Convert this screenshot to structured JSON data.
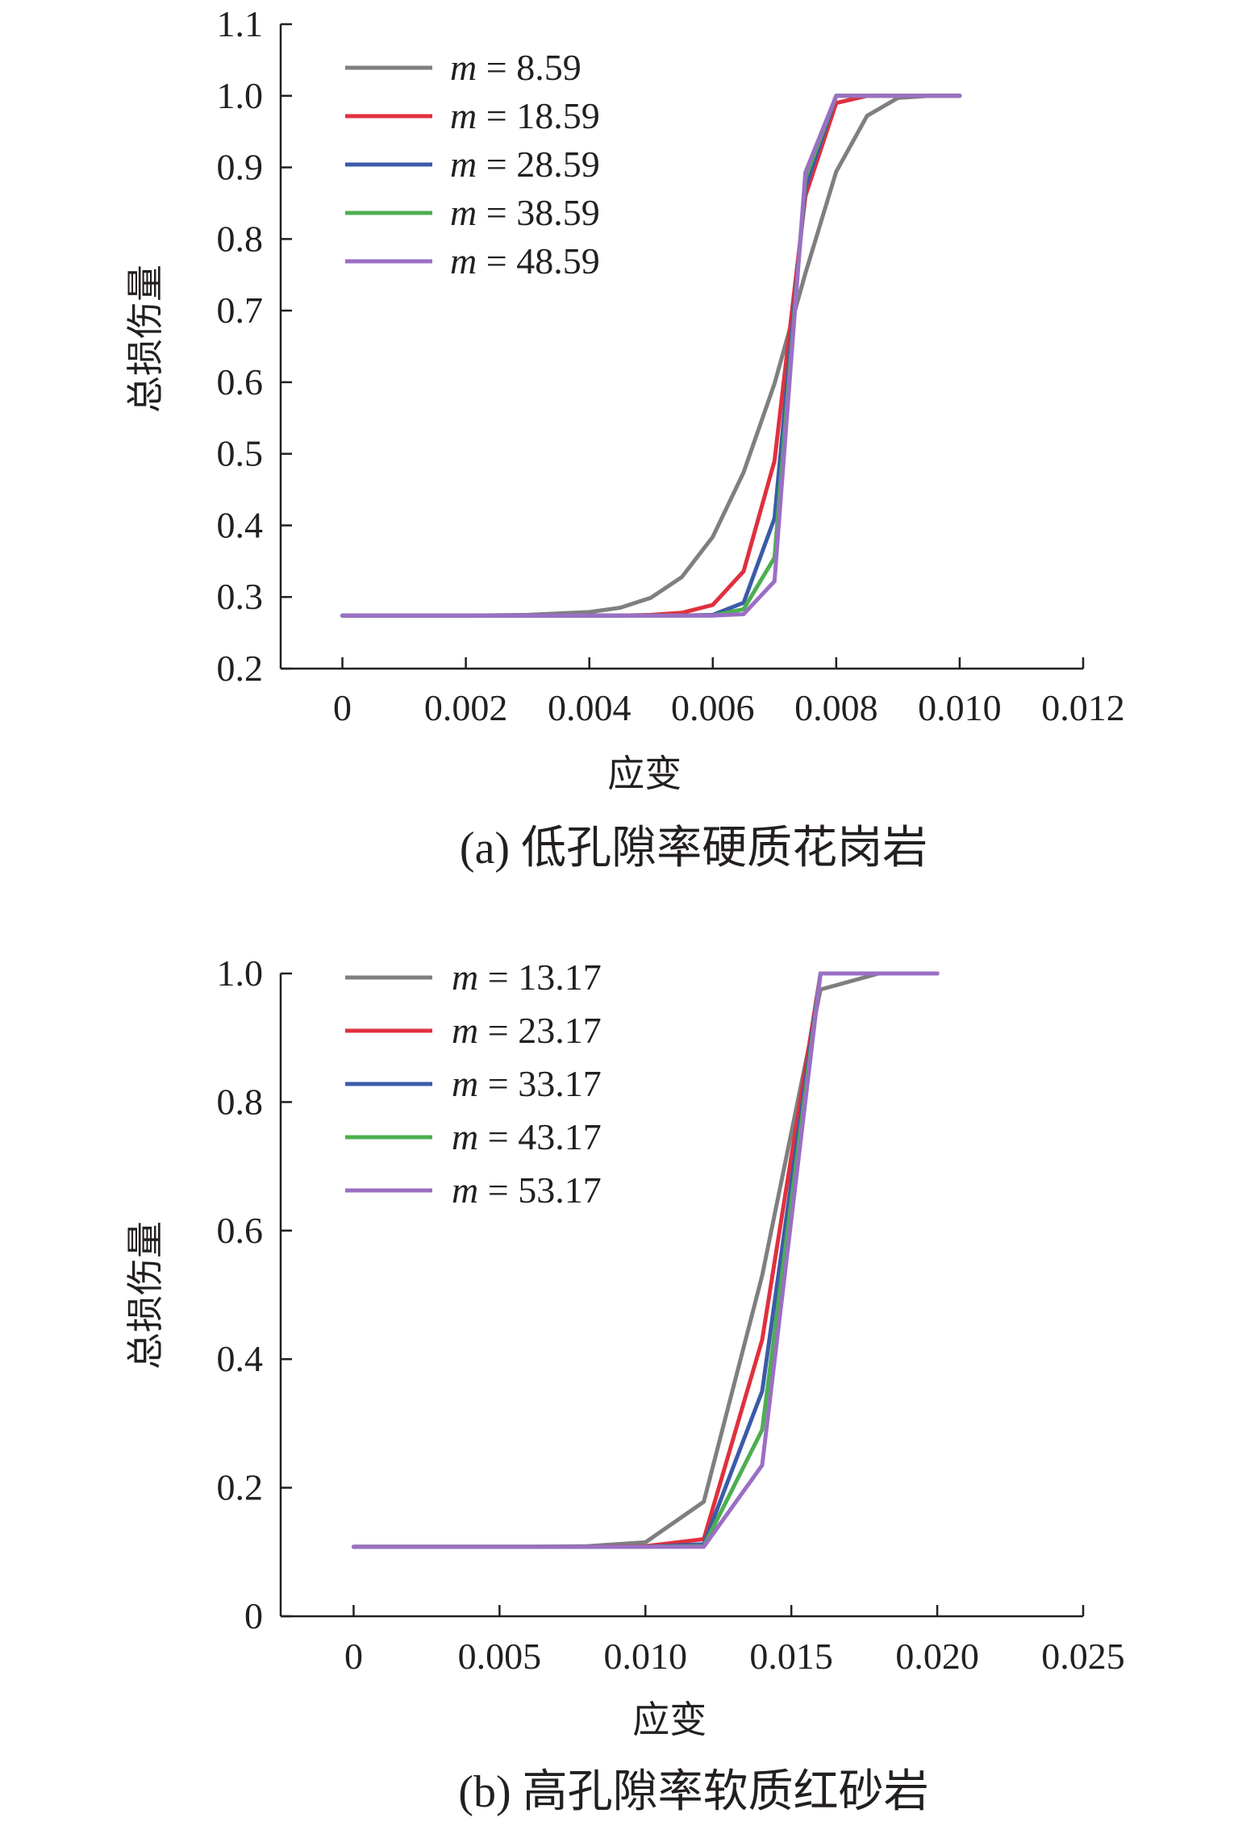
{
  "chart_data": [
    {
      "type": "line",
      "caption": "(a) 低孔隙率硬质花岗岩",
      "xlabel": "应变",
      "ylabel": "总损伤量",
      "xlim": [
        -0.001,
        0.012
      ],
      "ylim": [
        0.2,
        1.1
      ],
      "xticks": [
        0,
        0.002,
        0.004,
        0.006,
        0.008,
        0.01,
        0.012
      ],
      "xtick_labels": [
        "0",
        "0.002",
        "0.004",
        "0.006",
        "0.008",
        "0.010",
        "0.012"
      ],
      "yticks": [
        0.2,
        0.3,
        0.4,
        0.5,
        0.6,
        0.7,
        0.8,
        0.9,
        1.0,
        1.1
      ],
      "ytick_labels": [
        "0.2",
        "0.3",
        "0.4",
        "0.5",
        "0.6",
        "0.7",
        "0.8",
        "0.9",
        "1.0",
        "1.1"
      ],
      "grid": false,
      "legend_position": "top-left",
      "series": [
        {
          "name": "8.59",
          "color": "#7f7f7f",
          "x": [
            0,
            0.001,
            0.002,
            0.003,
            0.0035,
            0.004,
            0.0045,
            0.005,
            0.0055,
            0.006,
            0.0065,
            0.007,
            0.0075,
            0.008,
            0.0085,
            0.009,
            0.0095,
            0.01
          ],
          "y": [
            0.274,
            0.274,
            0.274,
            0.275,
            0.277,
            0.279,
            0.285,
            0.299,
            0.328,
            0.384,
            0.474,
            0.598,
            0.752,
            0.894,
            0.972,
            0.997,
            1.0,
            1.0
          ]
        },
        {
          "name": "18.59",
          "color": "#e0303e",
          "x": [
            0,
            0.001,
            0.002,
            0.003,
            0.004,
            0.0045,
            0.005,
            0.0055,
            0.006,
            0.0065,
            0.007,
            0.0075,
            0.008,
            0.0085,
            0.009,
            0.0095,
            0.01
          ],
          "y": [
            0.274,
            0.274,
            0.274,
            0.274,
            0.274,
            0.274,
            0.275,
            0.278,
            0.289,
            0.336,
            0.49,
            0.86,
            0.99,
            1.0,
            1.0,
            1.0,
            1.0
          ]
        },
        {
          "name": "28.59",
          "color": "#3b5ba9",
          "x": [
            0,
            0.001,
            0.002,
            0.003,
            0.004,
            0.005,
            0.0055,
            0.006,
            0.0065,
            0.007,
            0.0075,
            0.008,
            0.0085,
            0.009,
            0.0095,
            0.01
          ],
          "y": [
            0.274,
            0.274,
            0.274,
            0.274,
            0.274,
            0.274,
            0.274,
            0.275,
            0.292,
            0.41,
            0.872,
            1.0,
            1.0,
            1.0,
            1.0,
            1.0
          ]
        },
        {
          "name": "38.59",
          "color": "#4caf50",
          "x": [
            0,
            0.001,
            0.002,
            0.003,
            0.004,
            0.005,
            0.006,
            0.0065,
            0.007,
            0.0075,
            0.008,
            0.0085,
            0.009,
            0.0095,
            0.01
          ],
          "y": [
            0.274,
            0.274,
            0.274,
            0.274,
            0.274,
            0.274,
            0.274,
            0.283,
            0.355,
            0.885,
            1.0,
            1.0,
            1.0,
            1.0,
            1.0
          ]
        },
        {
          "name": "48.59",
          "color": "#9b6fc4",
          "x": [
            0,
            0.001,
            0.002,
            0.003,
            0.004,
            0.005,
            0.006,
            0.0065,
            0.007,
            0.0075,
            0.008,
            0.0085,
            0.009,
            0.0095,
            0.01
          ],
          "y": [
            0.274,
            0.274,
            0.274,
            0.274,
            0.274,
            0.274,
            0.274,
            0.276,
            0.322,
            0.893,
            1.0,
            1.0,
            1.0,
            1.0,
            1.0
          ]
        }
      ]
    },
    {
      "type": "line",
      "caption": "(b) 高孔隙率软质红砂岩",
      "xlabel": "应变",
      "ylabel": "总损伤量",
      "xlim": [
        -0.0025,
        0.025
      ],
      "ylim": [
        0,
        1.0
      ],
      "xticks": [
        0,
        0.005,
        0.01,
        0.015,
        0.02,
        0.025
      ],
      "xtick_labels": [
        "0",
        "0.005",
        "0.010",
        "0.015",
        "0.020",
        "0.025"
      ],
      "yticks": [
        0,
        0.2,
        0.4,
        0.6,
        0.8,
        1.0
      ],
      "ytick_labels": [
        "0",
        "0.2",
        "0.4",
        "0.6",
        "0.8",
        "1.0"
      ],
      "grid": false,
      "legend_position": "top-left",
      "series": [
        {
          "name": "13.17",
          "color": "#7f7f7f",
          "x": [
            0,
            0.002,
            0.004,
            0.006,
            0.008,
            0.01,
            0.012,
            0.014,
            0.016,
            0.018,
            0.02
          ],
          "y": [
            0.108,
            0.108,
            0.108,
            0.108,
            0.109,
            0.115,
            0.178,
            0.53,
            0.975,
            1.0,
            1.0
          ]
        },
        {
          "name": "23.17",
          "color": "#e0303e",
          "x": [
            0,
            0.002,
            0.004,
            0.006,
            0.008,
            0.01,
            0.012,
            0.014,
            0.016,
            0.018,
            0.02
          ],
          "y": [
            0.108,
            0.108,
            0.108,
            0.108,
            0.108,
            0.109,
            0.12,
            0.43,
            1.0,
            1.0,
            1.0
          ]
        },
        {
          "name": "33.17",
          "color": "#3b5ba9",
          "x": [
            0,
            0.002,
            0.004,
            0.006,
            0.008,
            0.01,
            0.012,
            0.014,
            0.016,
            0.018,
            0.02
          ],
          "y": [
            0.108,
            0.108,
            0.108,
            0.108,
            0.108,
            0.108,
            0.112,
            0.35,
            1.0,
            1.0,
            1.0
          ]
        },
        {
          "name": "43.17",
          "color": "#4caf50",
          "x": [
            0,
            0.002,
            0.004,
            0.006,
            0.008,
            0.01,
            0.012,
            0.014,
            0.016,
            0.018,
            0.02
          ],
          "y": [
            0.108,
            0.108,
            0.108,
            0.108,
            0.108,
            0.108,
            0.109,
            0.29,
            1.0,
            1.0,
            1.0
          ]
        },
        {
          "name": "53.17",
          "color": "#9b6fc4",
          "x": [
            0,
            0.002,
            0.004,
            0.006,
            0.008,
            0.01,
            0.012,
            0.014,
            0.016,
            0.018,
            0.02
          ],
          "y": [
            0.108,
            0.108,
            0.108,
            0.108,
            0.108,
            0.108,
            0.108,
            0.235,
            1.0,
            1.0,
            1.0
          ]
        }
      ]
    }
  ]
}
